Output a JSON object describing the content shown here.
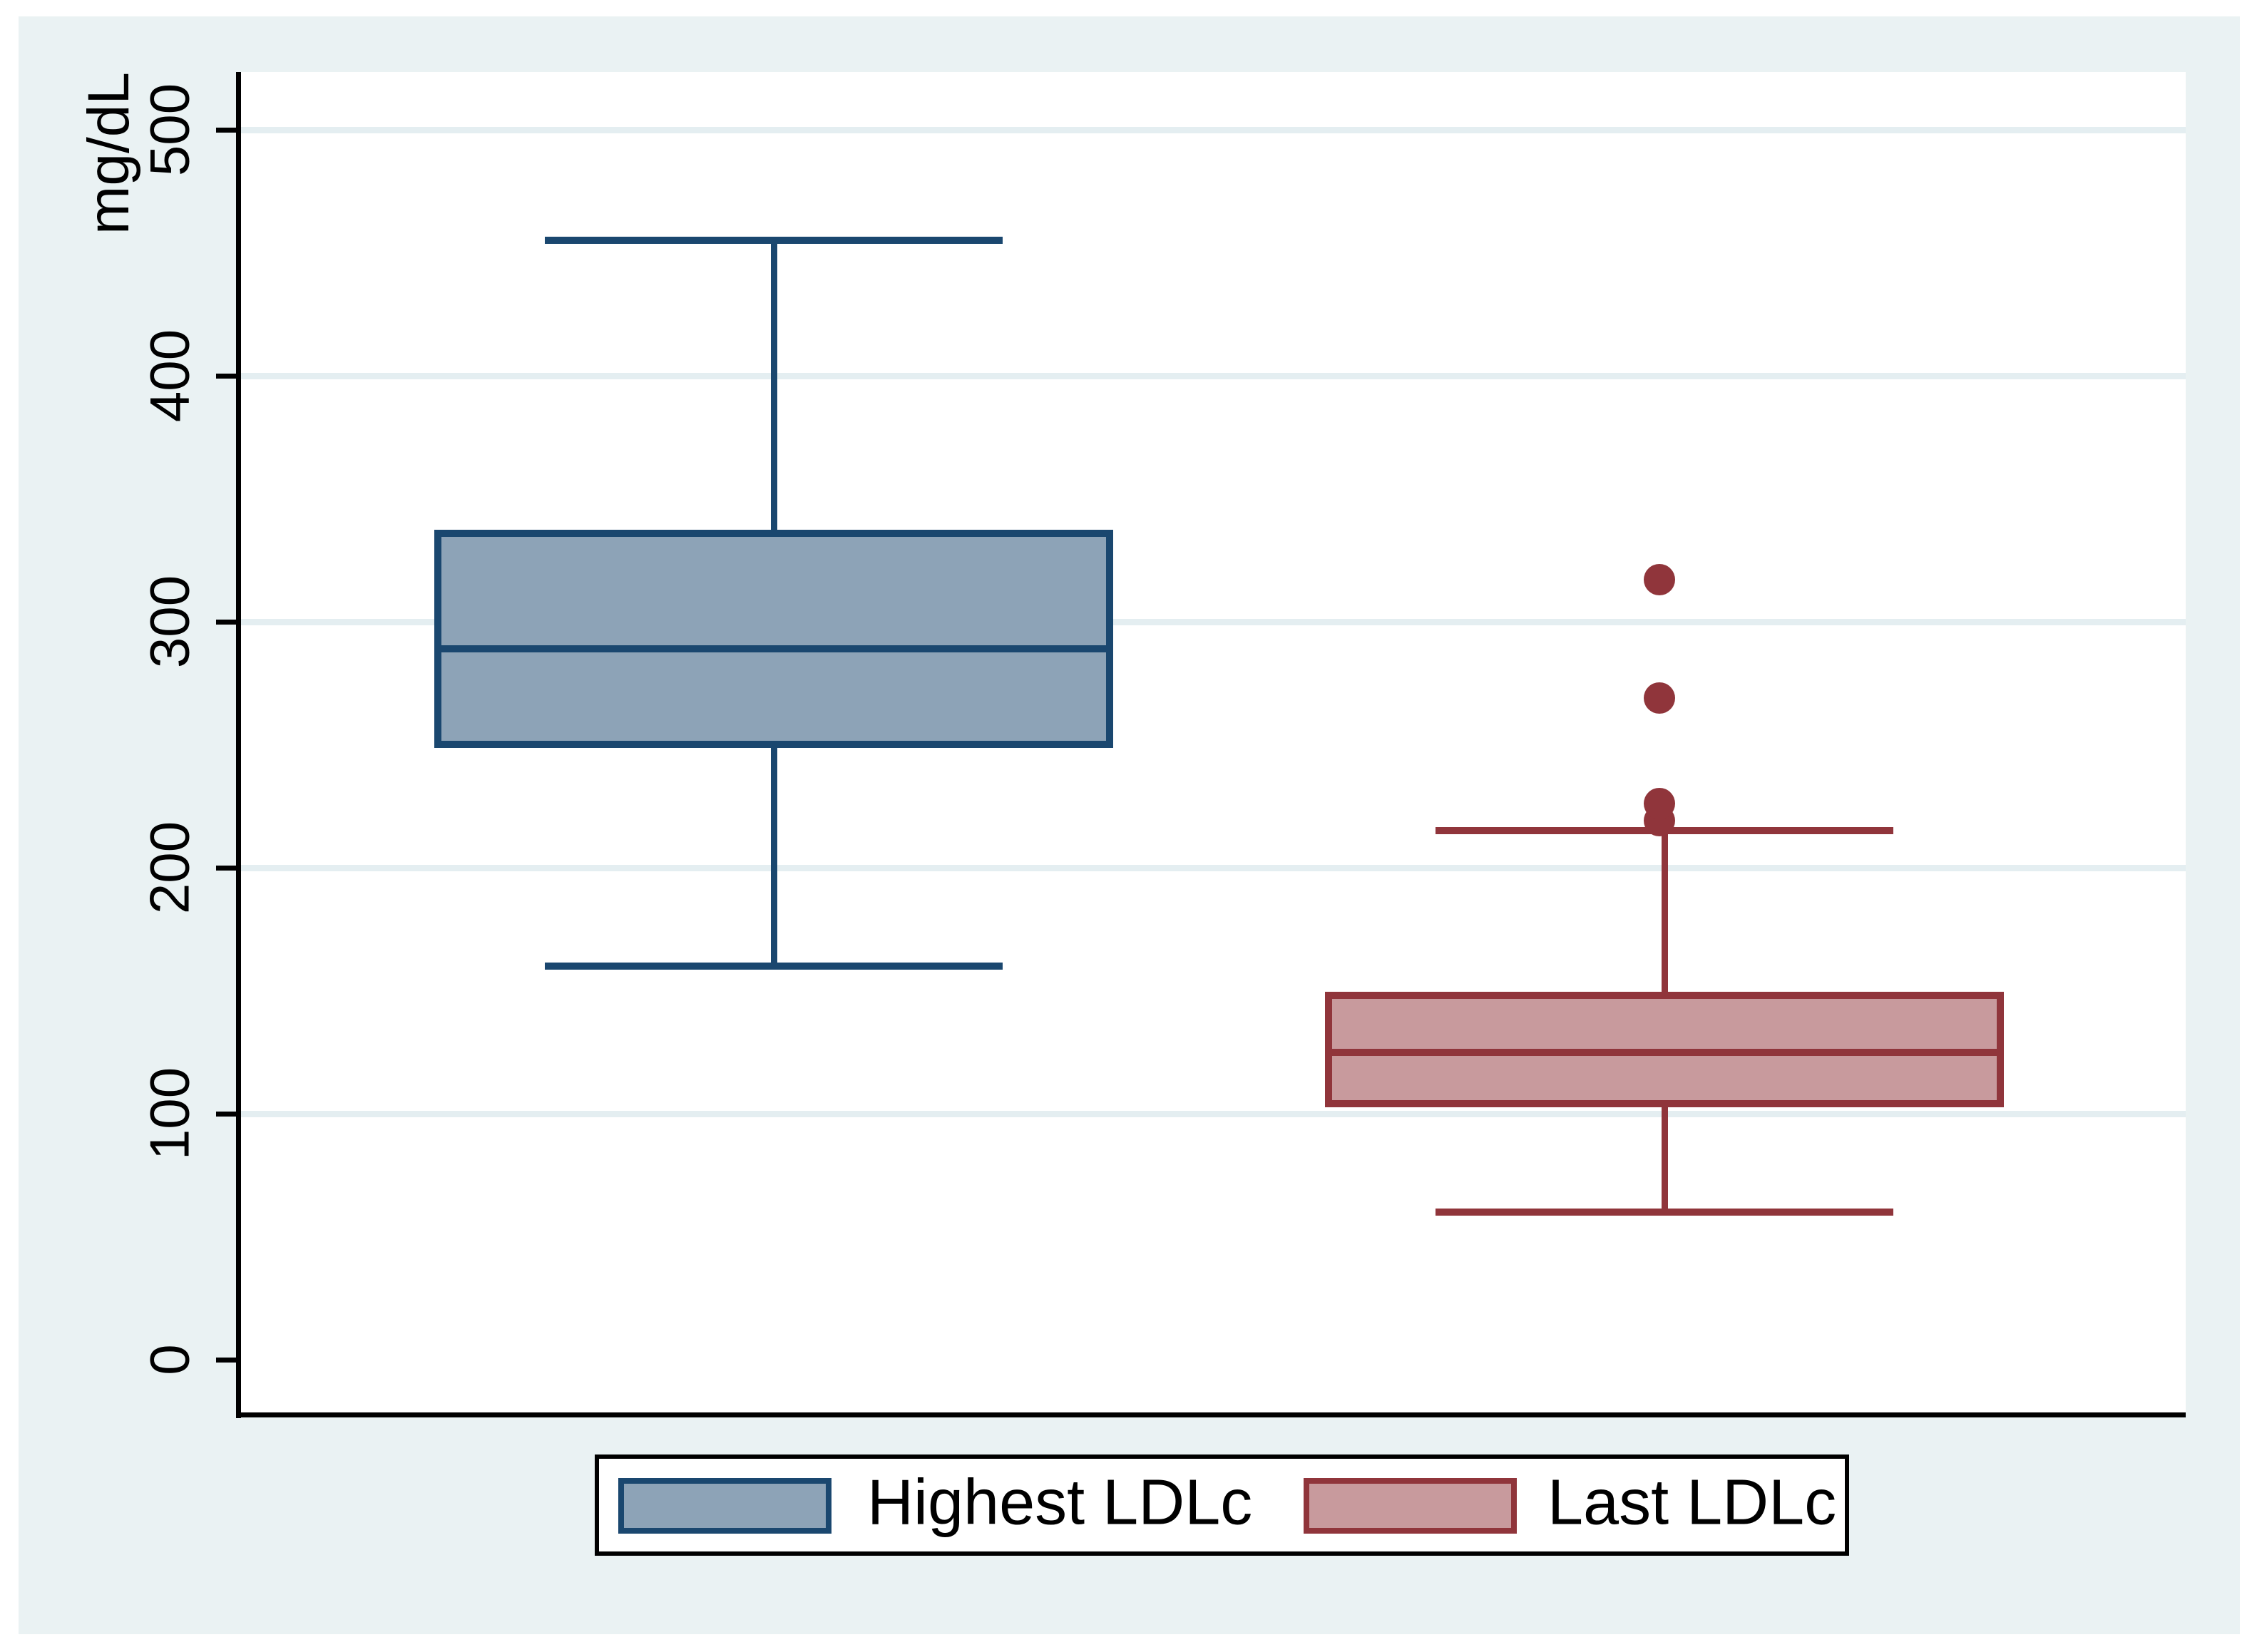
{
  "figure": {
    "outer_background": "#ffffff",
    "graph_region_color": "#eaf2f3",
    "plot_region_color": "#ffffff",
    "gridline_color": "#e4eef1",
    "axis_color": "#000000"
  },
  "chart_data": {
    "type": "boxplot",
    "orientation": "vertical",
    "ylabel": "mg/dL",
    "ylim": [
      0,
      530
    ],
    "yticks": [
      0,
      100,
      200,
      300,
      400,
      500
    ],
    "gridlines_at": [
      100,
      200,
      300,
      400,
      500
    ],
    "grid": true,
    "legend_position": "bottom-center",
    "series": [
      {
        "name": "Highest LDLc",
        "fill_color": "#8da3b7",
        "line_color": "#1a476f",
        "lower_whisker": 160,
        "q1": 250,
        "median": 289,
        "q3": 336,
        "upper_whisker": 455,
        "outliers": []
      },
      {
        "name": "Last LDLc",
        "fill_color": "#c89a9d",
        "line_color": "#90353b",
        "lower_whisker": 60,
        "q1": 104,
        "median": 125,
        "q3": 148,
        "upper_whisker": 215,
        "outliers": [
          219,
          226,
          269,
          317
        ]
      }
    ]
  },
  "legend": {
    "items": [
      {
        "label": "Highest LDLc"
      },
      {
        "label": "Last LDLc"
      }
    ]
  }
}
